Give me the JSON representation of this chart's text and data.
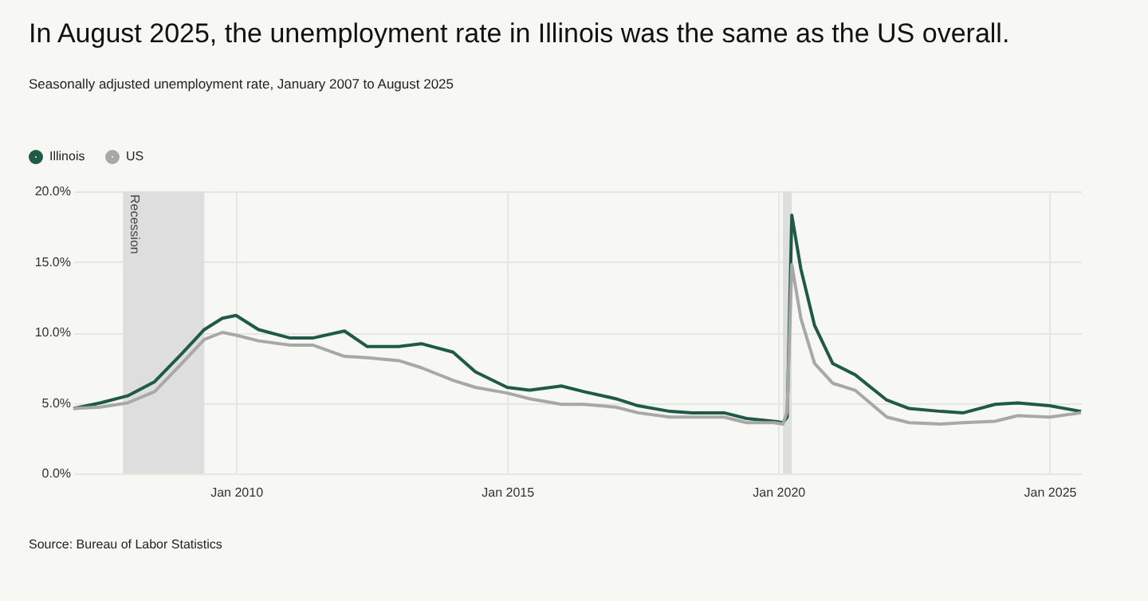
{
  "chart_data": {
    "type": "line",
    "title": "In August 2025, the unemployment rate in Illinois was the same as the US overall.",
    "subtitle": "Seasonally adjusted unemployment rate, January 2007 to August 2025",
    "x": [
      "2007-01",
      "2007-07",
      "2008-01",
      "2008-07",
      "2009-01",
      "2009-06",
      "2009-10",
      "2010-01",
      "2010-06",
      "2011-01",
      "2011-06",
      "2012-01",
      "2012-06",
      "2013-01",
      "2013-06",
      "2014-01",
      "2014-06",
      "2015-01",
      "2015-06",
      "2016-01",
      "2016-06",
      "2017-01",
      "2017-06",
      "2018-01",
      "2018-06",
      "2019-01",
      "2019-06",
      "2019-12",
      "2020-02",
      "2020-03",
      "2020-04",
      "2020-06",
      "2020-09",
      "2021-01",
      "2021-06",
      "2022-01",
      "2022-06",
      "2023-01",
      "2023-06",
      "2024-01",
      "2024-06",
      "2025-01",
      "2025-08"
    ],
    "series": [
      {
        "name": "Illinois",
        "color": "#1f5a48",
        "values": [
          4.6,
          5.0,
          5.5,
          6.5,
          8.5,
          10.2,
          11.0,
          11.2,
          10.2,
          9.6,
          9.6,
          10.1,
          9.0,
          9.0,
          9.2,
          8.6,
          7.2,
          6.1,
          5.9,
          6.2,
          5.8,
          5.3,
          4.8,
          4.4,
          4.3,
          4.3,
          3.9,
          3.7,
          3.6,
          4.0,
          18.3,
          14.5,
          10.5,
          7.8,
          7.0,
          5.2,
          4.6,
          4.4,
          4.3,
          4.9,
          5.0,
          4.8,
          4.4
        ]
      },
      {
        "name": "US",
        "color": "#a8a8a8",
        "values": [
          4.6,
          4.7,
          5.0,
          5.8,
          7.8,
          9.5,
          10.0,
          9.8,
          9.4,
          9.1,
          9.1,
          8.3,
          8.2,
          8.0,
          7.5,
          6.6,
          6.1,
          5.7,
          5.3,
          4.9,
          4.9,
          4.7,
          4.3,
          4.0,
          4.0,
          4.0,
          3.6,
          3.6,
          3.5,
          4.4,
          14.8,
          11.0,
          7.8,
          6.4,
          5.9,
          4.0,
          3.6,
          3.5,
          3.6,
          3.7,
          4.1,
          4.0,
          4.3
        ]
      }
    ],
    "xlim": [
      "2007-01",
      "2025-08"
    ],
    "xticks": [
      {
        "value": "2010-01",
        "label": "Jan 2010"
      },
      {
        "value": "2015-01",
        "label": "Jan 2015"
      },
      {
        "value": "2020-01",
        "label": "Jan 2020"
      },
      {
        "value": "2025-01",
        "label": "Jan 2025"
      }
    ],
    "ylim": [
      0,
      20
    ],
    "yticks": [
      {
        "value": 0,
        "label": "0.0%"
      },
      {
        "value": 5,
        "label": "5.0%"
      },
      {
        "value": 10,
        "label": "10.0%"
      },
      {
        "value": 15,
        "label": "15.0%"
      },
      {
        "value": 20,
        "label": "20.0%"
      }
    ],
    "bands": [
      {
        "axis": "x",
        "from": "2007-12",
        "to": "2009-06",
        "label": "Recession",
        "color": "#dedede"
      },
      {
        "axis": "x",
        "from": "2020-02",
        "to": "2020-04",
        "color": "#dedede"
      }
    ],
    "annotations": [
      "Source: Bureau of Labor Statistics"
    ],
    "grid": true,
    "legend": "top left",
    "line_style": "solid"
  }
}
